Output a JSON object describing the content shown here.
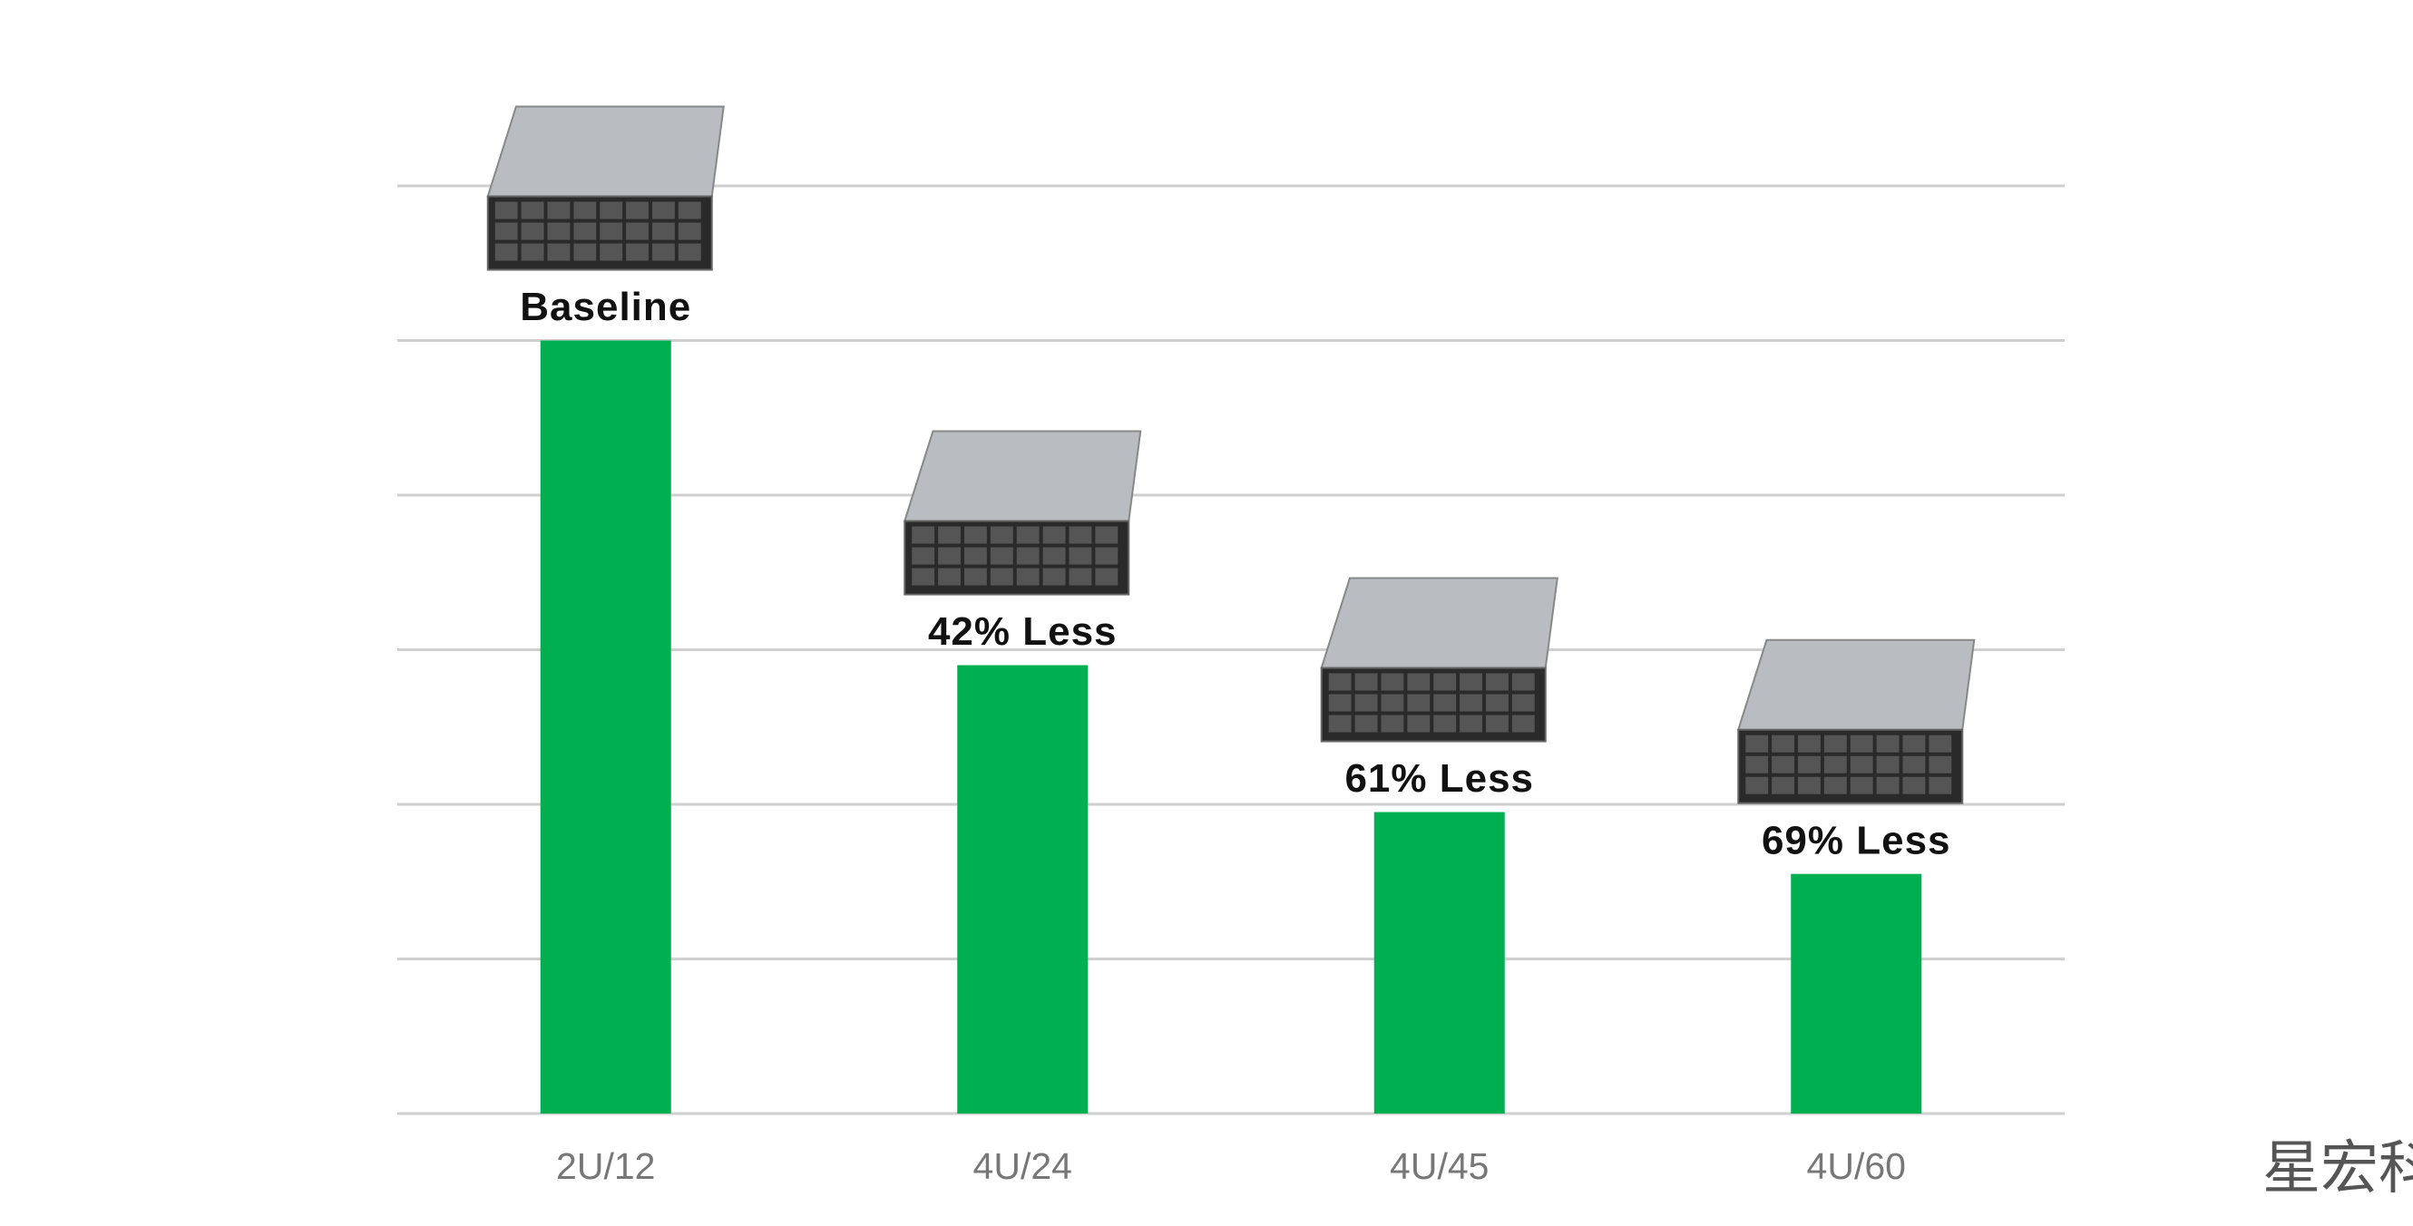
{
  "chart_data": {
    "type": "bar",
    "categories": [
      "2U/12",
      "4U/24",
      "4U/45",
      "4U/60"
    ],
    "values": [
      5,
      2.9,
      1.95,
      1.55
    ],
    "annotations": [
      "Baseline",
      "42% Less",
      "61% Less",
      "69% Less"
    ],
    "color": "#00b050",
    "ylim": [
      0,
      6
    ],
    "yticks": [
      0,
      1,
      2,
      3,
      4,
      5,
      6
    ],
    "grid": true
  },
  "watermark": "星宏科技"
}
